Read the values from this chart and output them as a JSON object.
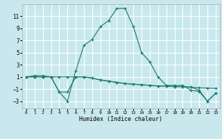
{
  "xlabel": "Humidex (Indice chaleur)",
  "background_color": "#c8e8ee",
  "grid_color": "#ffffff",
  "line_color": "#1a7a6e",
  "xlim": [
    -0.5,
    23.5
  ],
  "ylim": [
    -4.2,
    13.0
  ],
  "xticks": [
    0,
    1,
    2,
    3,
    4,
    5,
    6,
    7,
    8,
    9,
    10,
    11,
    12,
    13,
    14,
    15,
    16,
    17,
    18,
    19,
    20,
    21,
    22,
    23
  ],
  "yticks": [
    -3,
    -1,
    1,
    3,
    5,
    7,
    9,
    11
  ],
  "line1_x": [
    0,
    1,
    2,
    3,
    4,
    5,
    6,
    7,
    8,
    9,
    10,
    11,
    12,
    13,
    14,
    15,
    16,
    17,
    18,
    19,
    20,
    21,
    22,
    23
  ],
  "line1_y": [
    1.0,
    1.2,
    1.2,
    1.0,
    -1.5,
    -3.0,
    2.0,
    6.2,
    7.2,
    9.3,
    10.3,
    12.3,
    12.3,
    9.3,
    5.0,
    3.5,
    1.0,
    -0.4,
    -0.4,
    -0.4,
    -1.2,
    -1.4,
    -3.0,
    -1.7
  ],
  "line2_x": [
    0,
    1,
    2,
    3,
    4,
    5,
    6,
    7,
    8,
    9,
    10,
    11,
    12,
    13,
    14,
    15,
    16,
    17,
    18,
    19,
    20,
    21,
    22,
    23
  ],
  "line2_y": [
    1.0,
    1.0,
    1.0,
    1.0,
    1.0,
    1.0,
    1.0,
    1.0,
    0.8,
    0.5,
    0.3,
    0.1,
    -0.1,
    -0.2,
    -0.3,
    -0.4,
    -0.5,
    -0.5,
    -0.6,
    -0.6,
    -0.7,
    -0.8,
    -0.85,
    -0.9
  ],
  "line3_x": [
    0,
    1,
    2,
    3,
    4,
    5,
    6,
    7,
    8,
    9,
    10,
    11,
    12,
    13,
    14,
    15,
    16,
    17,
    18,
    19,
    20,
    21,
    22,
    23
  ],
  "line3_y": [
    1.0,
    1.0,
    1.0,
    1.0,
    -1.5,
    -1.5,
    1.0,
    1.0,
    0.8,
    0.5,
    0.3,
    0.1,
    -0.1,
    -0.2,
    -0.3,
    -0.4,
    -0.5,
    -0.5,
    -0.6,
    -0.6,
    -0.7,
    -1.2,
    -3.0,
    -1.7
  ]
}
